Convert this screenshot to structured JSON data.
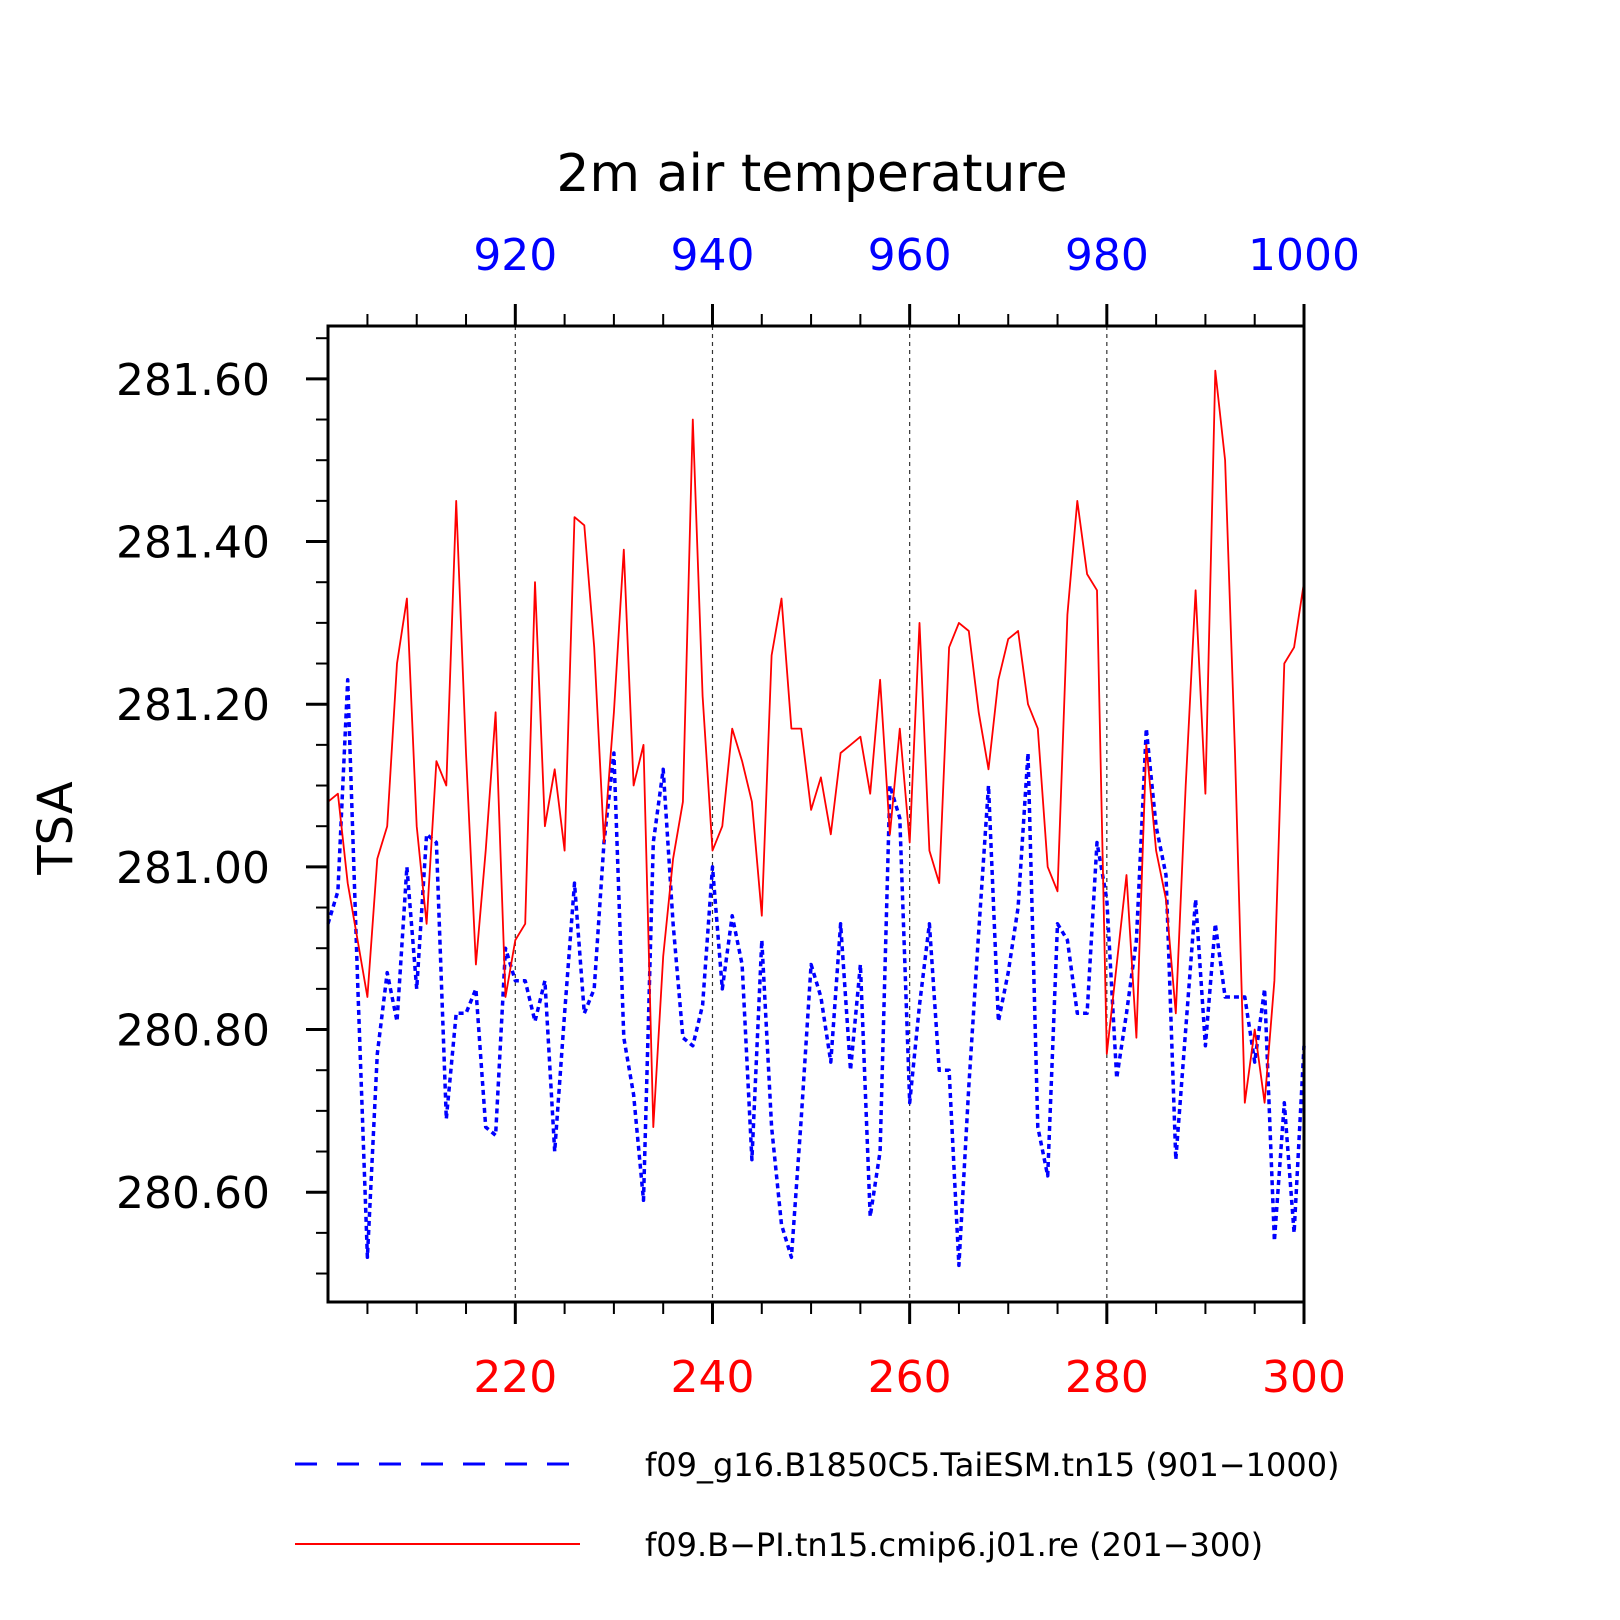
{
  "chart_data": {
    "type": "line",
    "title": "2m air temperature",
    "ylabel": "TSA",
    "xlabel": "",
    "ylim": [
      280.465,
      281.665
    ],
    "y_ticks": [
      280.6,
      280.8,
      281.0,
      281.2,
      281.4,
      281.6
    ],
    "y_tick_labels": [
      "280.60",
      "280.80",
      "281.00",
      "281.20",
      "281.40",
      "281.60"
    ],
    "grid": "vertical dashed at labeled x ticks",
    "legend_position": "bottom",
    "top_axis": {
      "color": "#0000ff",
      "xlim": [
        901,
        1000
      ],
      "ticks": [
        920,
        940,
        960,
        980,
        1000
      ],
      "tick_labels": [
        "920",
        "940",
        "960",
        "980",
        "1000"
      ]
    },
    "bottom_axis": {
      "color": "#ff0000",
      "xlim": [
        201,
        300
      ],
      "ticks": [
        220,
        240,
        260,
        280,
        300
      ],
      "tick_labels": [
        "220",
        "240",
        "260",
        "280",
        "300"
      ]
    },
    "series": [
      {
        "name": "f09_g16.B1850C5.TaiESM.tn15 (901−1000)",
        "color": "#0000ff",
        "dash": "dashed",
        "axis": "top",
        "x_start": 901,
        "values": [
          280.93,
          280.97,
          281.23,
          280.86,
          280.52,
          280.77,
          280.87,
          280.81,
          281.0,
          280.85,
          281.04,
          281.03,
          280.69,
          280.82,
          280.82,
          280.85,
          280.68,
          280.67,
          280.9,
          280.86,
          280.86,
          280.81,
          280.86,
          280.65,
          280.82,
          280.98,
          280.82,
          280.85,
          281.03,
          281.14,
          280.79,
          280.72,
          280.59,
          281.03,
          281.12,
          280.93,
          280.79,
          280.78,
          280.83,
          281.0,
          280.85,
          280.94,
          280.88,
          280.64,
          280.91,
          280.68,
          280.56,
          280.52,
          280.69,
          280.88,
          280.84,
          280.76,
          280.93,
          280.75,
          280.88,
          280.57,
          280.65,
          281.1,
          281.06,
          280.71,
          280.83,
          280.93,
          280.75,
          280.75,
          280.51,
          280.73,
          280.92,
          281.1,
          280.81,
          280.87,
          280.95,
          281.14,
          280.68,
          280.62,
          280.93,
          280.91,
          280.82,
          280.82,
          281.03,
          280.96,
          280.74,
          280.82,
          280.91,
          281.17,
          281.05,
          280.99,
          280.64,
          280.8,
          280.96,
          280.78,
          280.93,
          280.84,
          280.84,
          280.84,
          280.76,
          280.85,
          280.54,
          280.71,
          280.55,
          280.78
        ]
      },
      {
        "name": "f09.B−PI.tn15.cmip6.j01.re (201−300)",
        "color": "#ff0000",
        "dash": "solid",
        "axis": "bottom",
        "x_start": 201,
        "values": [
          281.08,
          281.09,
          280.98,
          280.91,
          280.84,
          281.01,
          281.05,
          281.25,
          281.33,
          281.05,
          280.93,
          281.13,
          281.1,
          281.45,
          281.14,
          280.88,
          281.02,
          281.19,
          280.84,
          280.91,
          280.93,
          281.35,
          281.05,
          281.12,
          281.02,
          281.43,
          281.42,
          281.27,
          281.03,
          281.19,
          281.39,
          281.1,
          281.15,
          280.68,
          280.89,
          281.01,
          281.08,
          281.55,
          281.21,
          281.02,
          281.05,
          281.17,
          281.13,
          281.08,
          280.94,
          281.26,
          281.33,
          281.17,
          281.17,
          281.07,
          281.11,
          281.04,
          281.14,
          281.15,
          281.16,
          281.09,
          281.23,
          281.04,
          281.17,
          281.03,
          281.3,
          281.02,
          280.98,
          281.27,
          281.3,
          281.29,
          281.19,
          281.12,
          281.23,
          281.28,
          281.29,
          281.2,
          281.17,
          281.0,
          280.97,
          281.31,
          281.45,
          281.36,
          281.34,
          280.77,
          280.88,
          280.99,
          280.79,
          281.15,
          281.02,
          280.96,
          280.82,
          281.1,
          281.34,
          281.09,
          281.61,
          281.5,
          281.14,
          280.71,
          280.8,
          280.71,
          280.86,
          281.25,
          281.27,
          281.35
        ]
      }
    ]
  }
}
